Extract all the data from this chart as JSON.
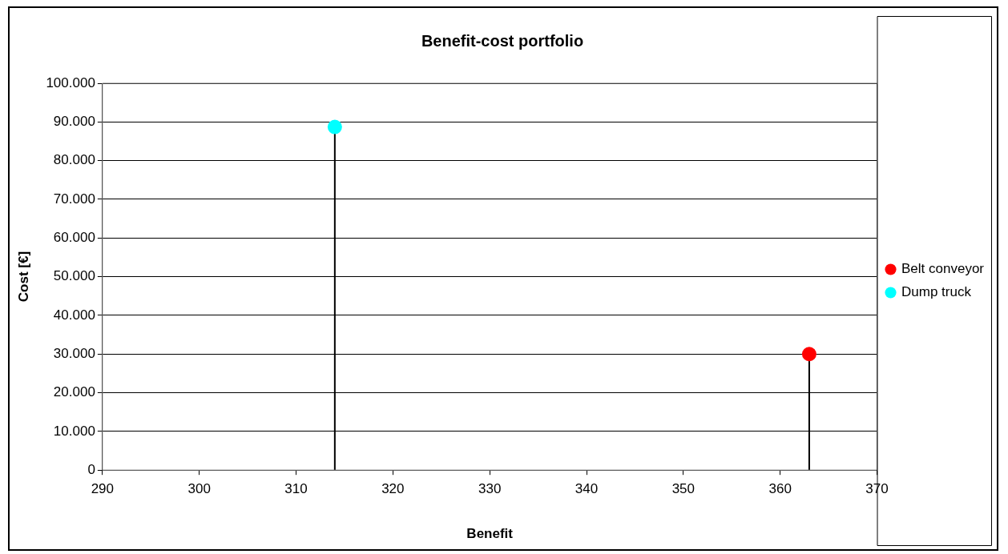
{
  "chart_data": {
    "type": "lollipop",
    "title": "Benefit-cost portfolio",
    "xlabel": "Benefit",
    "ylabel": "Cost [€]",
    "series": [
      {
        "name": "Belt conveyor",
        "color": "#ff0000",
        "x": [
          363
        ],
        "values": [
          30000
        ]
      },
      {
        "name": "Dump truck",
        "color": "#00ffff",
        "x": [
          314
        ],
        "values": [
          88700
        ]
      }
    ],
    "xlim": [
      290,
      370
    ],
    "xticks": [
      290,
      300,
      310,
      320,
      330,
      340,
      350,
      360,
      370
    ],
    "ylim": [
      0,
      100000
    ],
    "yticks": [
      {
        "value": 0,
        "label": "0"
      },
      {
        "value": 10000,
        "label": "10.000"
      },
      {
        "value": 20000,
        "label": "20.000"
      },
      {
        "value": 30000,
        "label": "30.000"
      },
      {
        "value": 40000,
        "label": "40.000"
      },
      {
        "value": 50000,
        "label": "50.000"
      },
      {
        "value": 60000,
        "label": "60.000"
      },
      {
        "value": 70000,
        "label": "70.000"
      },
      {
        "value": 80000,
        "label": "80.000"
      },
      {
        "value": 90000,
        "label": "90.000"
      },
      {
        "value": 100000,
        "label": "100.000"
      }
    ],
    "grid": "y",
    "legend": "right",
    "marker": "circle"
  }
}
